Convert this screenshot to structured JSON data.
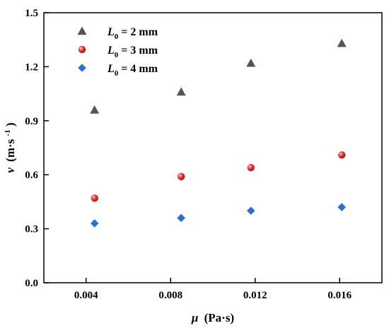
{
  "chart_data": {
    "type": "scatter",
    "title": "",
    "xlabel": "μ (Pa·s)",
    "xlabel_parts": {
      "symbol": "μ",
      "unit": "(Pa·s)"
    },
    "ylabel": "v (m·s-1)",
    "ylabel_parts": {
      "symbol": "v",
      "unit_base": "(m·s",
      "unit_exp": "-1",
      "unit_close": ")"
    },
    "xlim": [
      0.002,
      0.018
    ],
    "ylim": [
      0.0,
      1.5
    ],
    "x_ticks": [
      0.004,
      0.008,
      0.012,
      0.016
    ],
    "x_tick_labels": [
      "0.004",
      "0.008",
      "0.012",
      "0.016"
    ],
    "y_ticks": [
      0.0,
      0.3,
      0.6,
      0.9,
      1.2,
      1.5
    ],
    "y_tick_labels": [
      "0.0",
      "0.3",
      "0.6",
      "0.9",
      "1.2",
      "1.5"
    ],
    "grid": false,
    "legend_position": "top-left",
    "series": [
      {
        "name": "L0 = 2 mm",
        "label_main": "L",
        "label_sub": "0",
        "label_rest": " = 2 mm",
        "marker": "triangle",
        "color": "#555555",
        "x": [
          0.0044,
          0.0085,
          0.0118,
          0.0161
        ],
        "y": [
          0.96,
          1.06,
          1.22,
          1.33
        ]
      },
      {
        "name": "L0 = 3 mm",
        "label_main": "L",
        "label_sub": "0",
        "label_rest": " = 3 mm",
        "marker": "sphere",
        "color": "#e03030",
        "x": [
          0.0044,
          0.0085,
          0.0118,
          0.0161
        ],
        "y": [
          0.47,
          0.59,
          0.64,
          0.71
        ]
      },
      {
        "name": "L0 = 4 mm",
        "label_main": "L",
        "label_sub": "0",
        "label_rest": " = 4 mm",
        "marker": "diamond",
        "color": "#2a6fd6",
        "x": [
          0.0044,
          0.0085,
          0.0118,
          0.0161
        ],
        "y": [
          0.33,
          0.36,
          0.4,
          0.42
        ]
      }
    ]
  }
}
